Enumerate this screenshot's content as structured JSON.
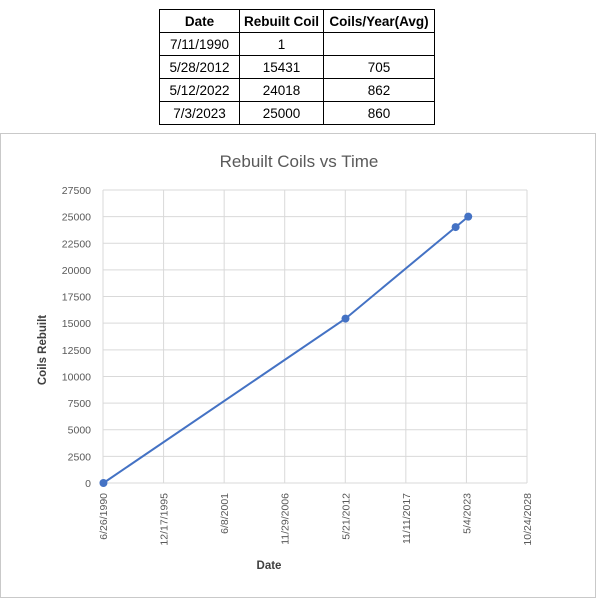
{
  "table": {
    "headers": [
      "Date",
      "Rebuilt Coil",
      "Coils/Year(Avg)"
    ],
    "rows": [
      [
        "7/11/1990",
        "1",
        ""
      ],
      [
        "5/28/2012",
        "15431",
        "705"
      ],
      [
        "5/12/2022",
        "24018",
        "862"
      ],
      [
        "7/3/2023",
        "25000",
        "860"
      ]
    ]
  },
  "chart_data": {
    "type": "scatter",
    "title": "Rebuilt Coils vs Time",
    "xlabel": "Date",
    "ylabel": "Coils Rebuilt",
    "x_tick_labels": [
      "6/26/1990",
      "12/17/1995",
      "6/8/2001",
      "11/29/2006",
      "5/21/2012",
      "11/11/2017",
      "5/4/2023",
      "10/24/2028"
    ],
    "xlim": [
      "6/26/1990",
      "10/24/2028"
    ],
    "y_ticks": [
      0,
      2500,
      5000,
      7500,
      10000,
      12500,
      15000,
      17500,
      20000,
      22500,
      25000,
      27500
    ],
    "ylim": [
      0,
      27500
    ],
    "grid": true,
    "line_color": "#4472C4",
    "series": [
      {
        "x": [
          "7/11/1990",
          "5/28/2012",
          "5/12/2022",
          "7/3/2023"
        ],
        "y": [
          1,
          15431,
          24018,
          25000
        ]
      }
    ]
  }
}
